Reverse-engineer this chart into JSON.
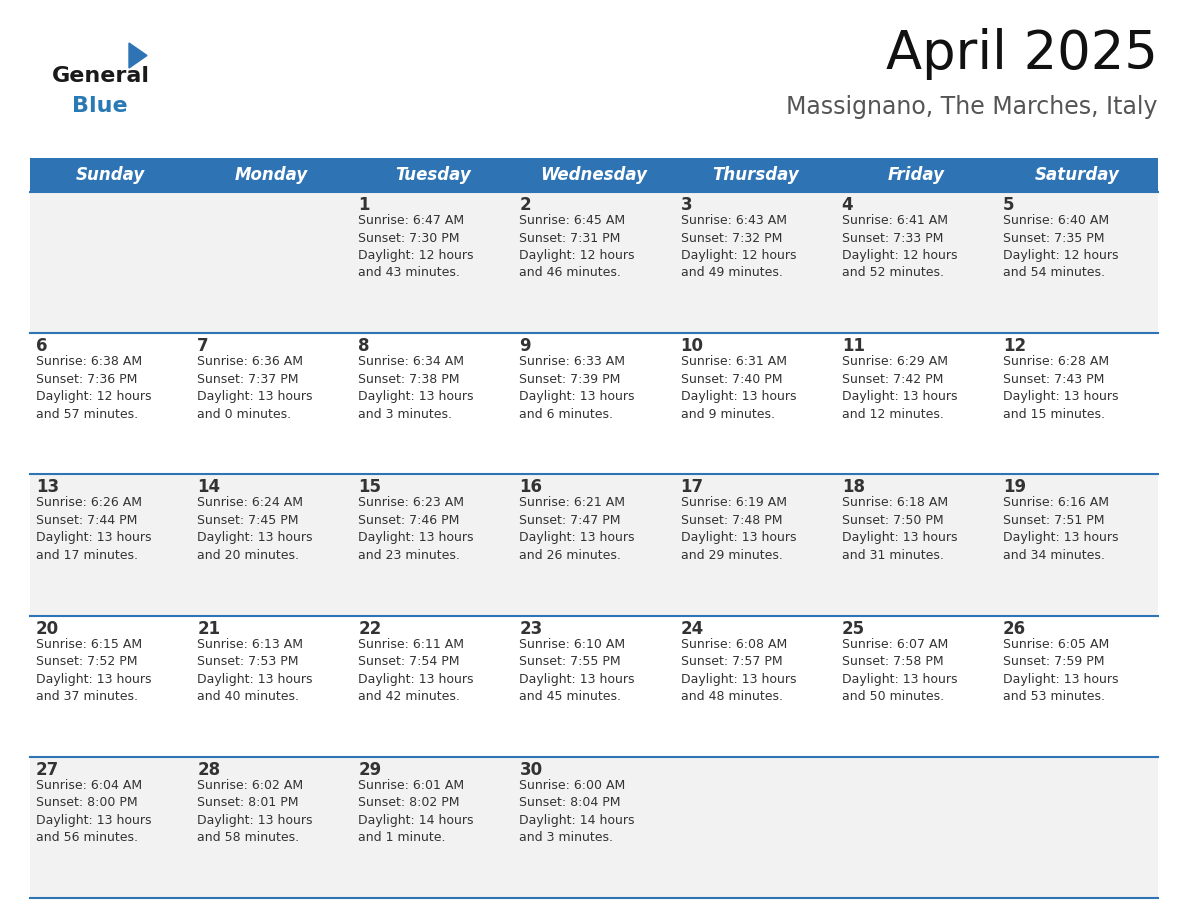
{
  "title": "April 2025",
  "subtitle": "Massignano, The Marches, Italy",
  "header_color": "#2E74B5",
  "header_text_color": "#FFFFFF",
  "cell_bg_color": "#F2F2F2",
  "cell_bg_white": "#FFFFFF",
  "border_color": "#2E74B5",
  "text_color": "#333333",
  "logo_general_color": "#1a1a1a",
  "logo_blue_color": "#2979B5",
  "days_of_week": [
    "Sunday",
    "Monday",
    "Tuesday",
    "Wednesday",
    "Thursday",
    "Friday",
    "Saturday"
  ],
  "weeks": [
    [
      {
        "day": "",
        "info": ""
      },
      {
        "day": "",
        "info": ""
      },
      {
        "day": "1",
        "info": "Sunrise: 6:47 AM\nSunset: 7:30 PM\nDaylight: 12 hours\nand 43 minutes."
      },
      {
        "day": "2",
        "info": "Sunrise: 6:45 AM\nSunset: 7:31 PM\nDaylight: 12 hours\nand 46 minutes."
      },
      {
        "day": "3",
        "info": "Sunrise: 6:43 AM\nSunset: 7:32 PM\nDaylight: 12 hours\nand 49 minutes."
      },
      {
        "day": "4",
        "info": "Sunrise: 6:41 AM\nSunset: 7:33 PM\nDaylight: 12 hours\nand 52 minutes."
      },
      {
        "day": "5",
        "info": "Sunrise: 6:40 AM\nSunset: 7:35 PM\nDaylight: 12 hours\nand 54 minutes."
      }
    ],
    [
      {
        "day": "6",
        "info": "Sunrise: 6:38 AM\nSunset: 7:36 PM\nDaylight: 12 hours\nand 57 minutes."
      },
      {
        "day": "7",
        "info": "Sunrise: 6:36 AM\nSunset: 7:37 PM\nDaylight: 13 hours\nand 0 minutes."
      },
      {
        "day": "8",
        "info": "Sunrise: 6:34 AM\nSunset: 7:38 PM\nDaylight: 13 hours\nand 3 minutes."
      },
      {
        "day": "9",
        "info": "Sunrise: 6:33 AM\nSunset: 7:39 PM\nDaylight: 13 hours\nand 6 minutes."
      },
      {
        "day": "10",
        "info": "Sunrise: 6:31 AM\nSunset: 7:40 PM\nDaylight: 13 hours\nand 9 minutes."
      },
      {
        "day": "11",
        "info": "Sunrise: 6:29 AM\nSunset: 7:42 PM\nDaylight: 13 hours\nand 12 minutes."
      },
      {
        "day": "12",
        "info": "Sunrise: 6:28 AM\nSunset: 7:43 PM\nDaylight: 13 hours\nand 15 minutes."
      }
    ],
    [
      {
        "day": "13",
        "info": "Sunrise: 6:26 AM\nSunset: 7:44 PM\nDaylight: 13 hours\nand 17 minutes."
      },
      {
        "day": "14",
        "info": "Sunrise: 6:24 AM\nSunset: 7:45 PM\nDaylight: 13 hours\nand 20 minutes."
      },
      {
        "day": "15",
        "info": "Sunrise: 6:23 AM\nSunset: 7:46 PM\nDaylight: 13 hours\nand 23 minutes."
      },
      {
        "day": "16",
        "info": "Sunrise: 6:21 AM\nSunset: 7:47 PM\nDaylight: 13 hours\nand 26 minutes."
      },
      {
        "day": "17",
        "info": "Sunrise: 6:19 AM\nSunset: 7:48 PM\nDaylight: 13 hours\nand 29 minutes."
      },
      {
        "day": "18",
        "info": "Sunrise: 6:18 AM\nSunset: 7:50 PM\nDaylight: 13 hours\nand 31 minutes."
      },
      {
        "day": "19",
        "info": "Sunrise: 6:16 AM\nSunset: 7:51 PM\nDaylight: 13 hours\nand 34 minutes."
      }
    ],
    [
      {
        "day": "20",
        "info": "Sunrise: 6:15 AM\nSunset: 7:52 PM\nDaylight: 13 hours\nand 37 minutes."
      },
      {
        "day": "21",
        "info": "Sunrise: 6:13 AM\nSunset: 7:53 PM\nDaylight: 13 hours\nand 40 minutes."
      },
      {
        "day": "22",
        "info": "Sunrise: 6:11 AM\nSunset: 7:54 PM\nDaylight: 13 hours\nand 42 minutes."
      },
      {
        "day": "23",
        "info": "Sunrise: 6:10 AM\nSunset: 7:55 PM\nDaylight: 13 hours\nand 45 minutes."
      },
      {
        "day": "24",
        "info": "Sunrise: 6:08 AM\nSunset: 7:57 PM\nDaylight: 13 hours\nand 48 minutes."
      },
      {
        "day": "25",
        "info": "Sunrise: 6:07 AM\nSunset: 7:58 PM\nDaylight: 13 hours\nand 50 minutes."
      },
      {
        "day": "26",
        "info": "Sunrise: 6:05 AM\nSunset: 7:59 PM\nDaylight: 13 hours\nand 53 minutes."
      }
    ],
    [
      {
        "day": "27",
        "info": "Sunrise: 6:04 AM\nSunset: 8:00 PM\nDaylight: 13 hours\nand 56 minutes."
      },
      {
        "day": "28",
        "info": "Sunrise: 6:02 AM\nSunset: 8:01 PM\nDaylight: 13 hours\nand 58 minutes."
      },
      {
        "day": "29",
        "info": "Sunrise: 6:01 AM\nSunset: 8:02 PM\nDaylight: 14 hours\nand 1 minute."
      },
      {
        "day": "30",
        "info": "Sunrise: 6:00 AM\nSunset: 8:04 PM\nDaylight: 14 hours\nand 3 minutes."
      },
      {
        "day": "",
        "info": ""
      },
      {
        "day": "",
        "info": ""
      },
      {
        "day": "",
        "info": ""
      }
    ]
  ],
  "title_fontsize": 38,
  "subtitle_fontsize": 17,
  "header_fontsize": 12,
  "day_num_fontsize": 12,
  "info_fontsize": 9,
  "logo_fontsize": 16
}
